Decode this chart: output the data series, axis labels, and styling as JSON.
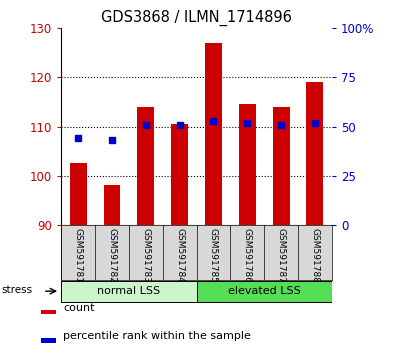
{
  "title": "GDS3868 / ILMN_1714896",
  "samples": [
    "GSM591781",
    "GSM591782",
    "GSM591783",
    "GSM591784",
    "GSM591785",
    "GSM591786",
    "GSM591787",
    "GSM591788"
  ],
  "counts": [
    102.5,
    98.0,
    114.0,
    110.5,
    127.0,
    114.5,
    114.0,
    119.0
  ],
  "percentile": [
    44,
    43,
    51,
    51,
    53,
    52,
    51,
    52
  ],
  "ylim_left": [
    90,
    130
  ],
  "ylim_right": [
    0,
    100
  ],
  "yticks_left": [
    90,
    100,
    110,
    120,
    130
  ],
  "yticks_right": [
    0,
    25,
    50,
    75,
    100
  ],
  "bar_color": "#cc0000",
  "dot_color": "#0000cc",
  "bar_bottom": 90,
  "group_labels": [
    "normal LSS",
    "elevated LSS"
  ],
  "group_ranges": [
    [
      0,
      4
    ],
    [
      4,
      8
    ]
  ],
  "group_colors_light": [
    "#ccf5cc",
    "#55dd55"
  ],
  "stress_label": "stress",
  "legend_count": "count",
  "legend_percentile": "percentile rank within the sample",
  "left_tick_color": "#cc0000",
  "right_tick_color": "#0000cc",
  "sample_bg_color": "#d8d8d8",
  "grid_dotted_values": [
    100,
    110,
    120
  ]
}
